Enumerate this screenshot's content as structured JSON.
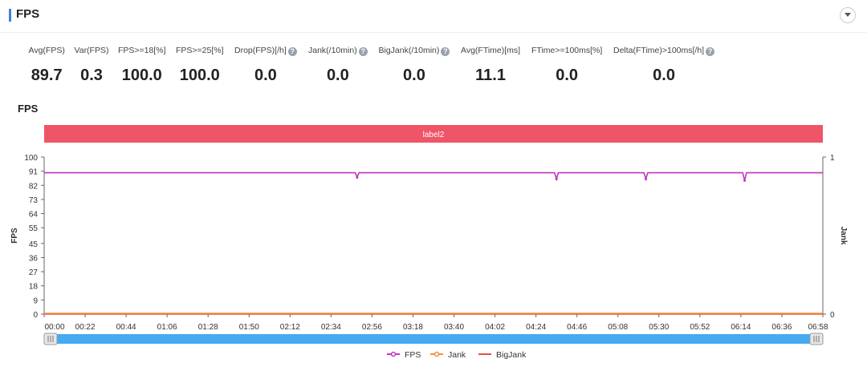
{
  "header": {
    "title": "FPS"
  },
  "metrics": [
    {
      "label": "Avg(FPS)",
      "value": "89.7",
      "help": false
    },
    {
      "label": "Var(FPS)",
      "value": "0.3",
      "help": false
    },
    {
      "label": "FPS>=18[%]",
      "value": "100.0",
      "help": false
    },
    {
      "label": "FPS>=25[%]",
      "value": "100.0",
      "help": false
    },
    {
      "label": "Drop(FPS)[/h]",
      "value": "0.0",
      "help": true
    },
    {
      "label": "Jank(/10min)",
      "value": "0.0",
      "help": true
    },
    {
      "label": "BigJank(/10min)",
      "value": "0.0",
      "help": true
    },
    {
      "label": "Avg(FTime)[ms]",
      "value": "11.1",
      "help": false
    },
    {
      "label": "FTime>=100ms[%]",
      "value": "0.0",
      "help": false
    },
    {
      "label": "Delta(FTime)>100ms[/h]",
      "value": "0.0",
      "help": true
    }
  ],
  "help_glyph": "?",
  "chart_section_title": "FPS",
  "colors": {
    "fps": "#c235c2",
    "jank": "#f0913a",
    "bigjank": "#e0533e",
    "label_band": "#ee5567",
    "slider": "#45aaf2"
  },
  "chart_data": {
    "type": "line",
    "label_band": "label2",
    "x_ticks": [
      "00:00",
      "00:22",
      "00:44",
      "01:06",
      "01:28",
      "01:50",
      "02:12",
      "02:34",
      "02:56",
      "03:18",
      "03:40",
      "04:02",
      "04:24",
      "04:46",
      "05:08",
      "05:30",
      "05:52",
      "06:14",
      "06:36",
      "06:58"
    ],
    "x_range_seconds": [
      0,
      418
    ],
    "y_left": {
      "label": "FPS",
      "ticks": [
        0,
        9,
        18,
        27,
        36,
        45,
        55,
        64,
        73,
        82,
        91,
        100
      ],
      "range": [
        0,
        100
      ]
    },
    "y_right": {
      "label": "Jank",
      "ticks": [
        0,
        1
      ],
      "range": [
        0,
        1
      ]
    },
    "series": [
      {
        "name": "FPS",
        "axis": "left",
        "baseline": 90,
        "dips": [
          {
            "t": 168,
            "value": 87
          },
          {
            "t": 275,
            "value": 86
          },
          {
            "t": 323,
            "value": 86
          },
          {
            "t": 376,
            "value": 85
          }
        ]
      },
      {
        "name": "Jank",
        "axis": "right",
        "constant": 0
      },
      {
        "name": "BigJank",
        "axis": "right",
        "constant": 0
      }
    ],
    "legend": {
      "position": "bottom",
      "items": [
        "FPS",
        "Jank",
        "BigJank"
      ]
    }
  }
}
